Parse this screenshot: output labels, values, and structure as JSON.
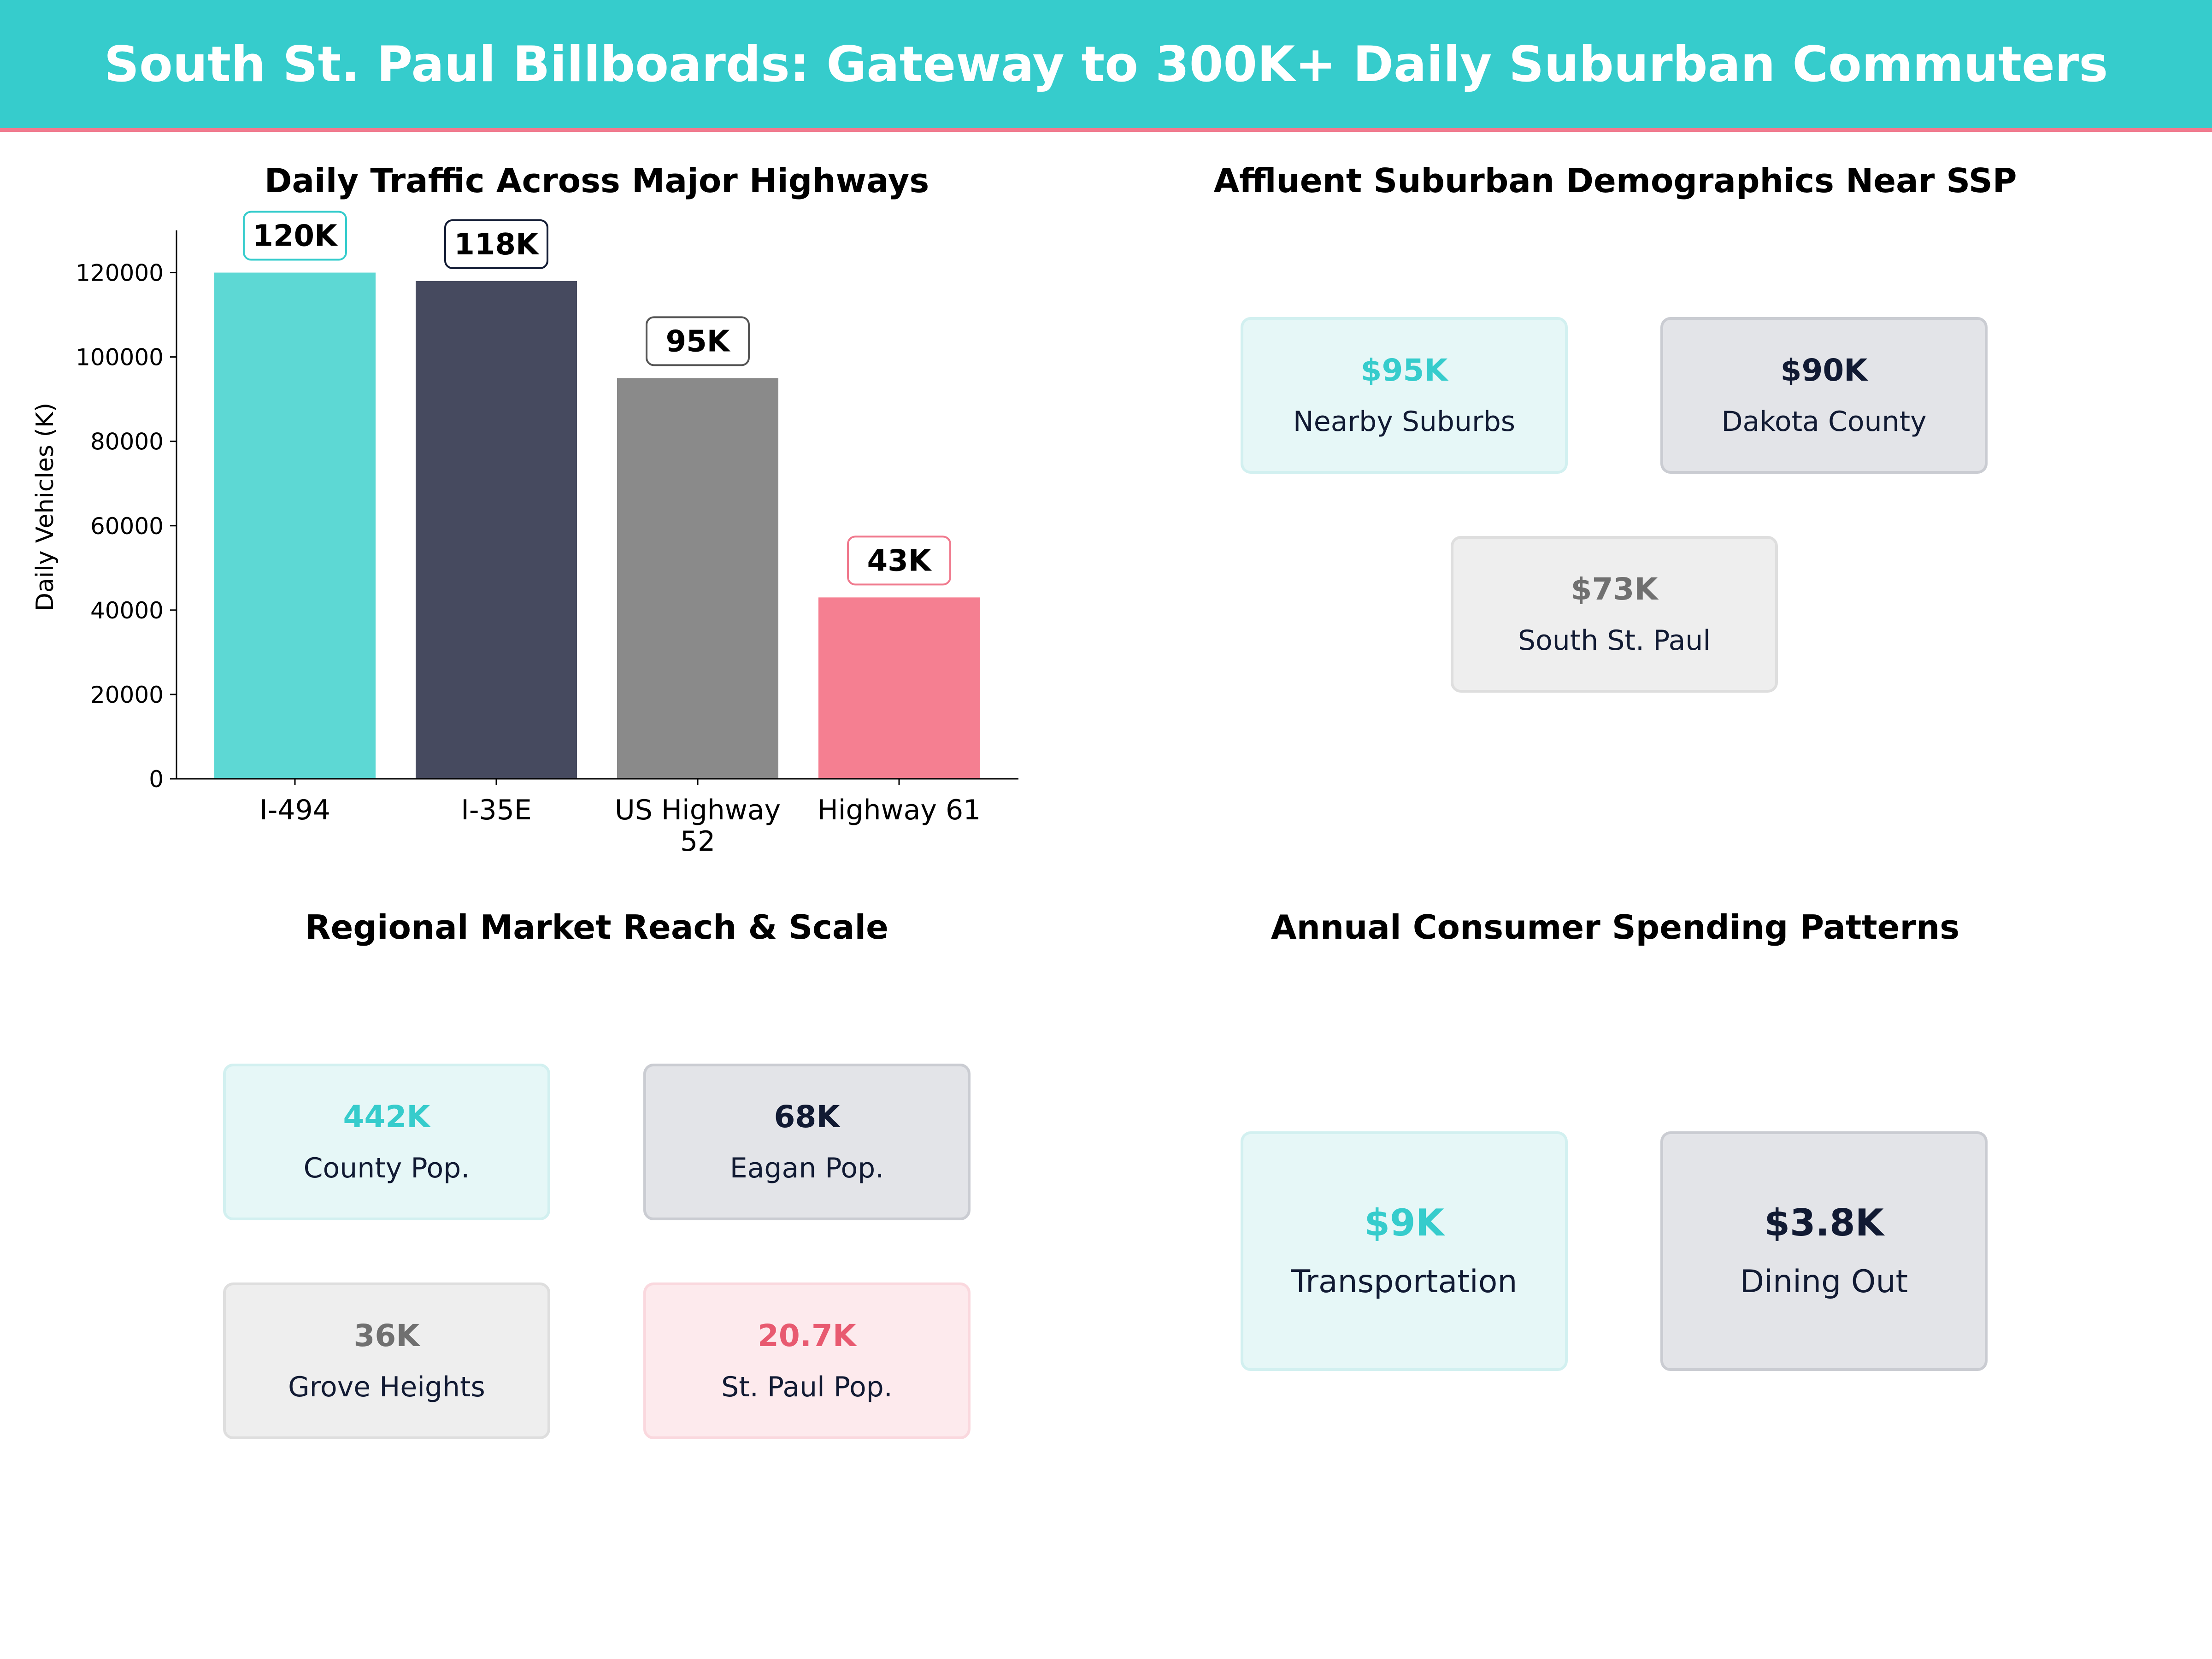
{
  "header": {
    "title": "South St. Paul Billboards: Gateway to 300K+ Daily Suburban Commuters"
  },
  "colors": {
    "teal": "#36CCCC",
    "navy": "#111a33",
    "gray": "#8A8A8A",
    "pink": "#F07A8E"
  },
  "chart_data": {
    "type": "bar",
    "title": "Daily Traffic Across Major Highways",
    "xlabel": "",
    "ylabel": "Daily Vehicles (K)",
    "categories": [
      "I-494",
      "I-35E",
      "US Highway 52",
      "Highway 61"
    ],
    "category_lines": [
      [
        "I-494"
      ],
      [
        "I-35E"
      ],
      [
        "US Highway",
        "52"
      ],
      [
        "Highway 61"
      ]
    ],
    "values": [
      120000,
      118000,
      95000,
      43000
    ],
    "data_labels": [
      "120K",
      "118K",
      "95K",
      "43K"
    ],
    "bar_colors": [
      "#5DD8D4",
      "#464A5F",
      "#8A8A8A",
      "#F57F91"
    ],
    "label_border_colors": [
      "#36CCCC",
      "#111a33",
      "#555555",
      "#F07A8E"
    ],
    "ylim": [
      0,
      130000
    ],
    "yticks": [
      0,
      20000,
      40000,
      60000,
      80000,
      100000,
      120000
    ],
    "grid": false
  },
  "demographics": {
    "title": "Affluent Suburban Demographics Near SSP",
    "cards": [
      {
        "value": "$95K",
        "label": "Nearby Suburbs"
      },
      {
        "value": "$90K",
        "label": "Dakota County"
      },
      {
        "value": "$73K",
        "label": "South St. Paul"
      }
    ]
  },
  "reach": {
    "title": "Regional Market Reach & Scale",
    "cards": [
      {
        "value": "442K",
        "label": "County Pop."
      },
      {
        "value": "68K",
        "label": "Eagan Pop."
      },
      {
        "value": "36K",
        "label": "Grove Heights"
      },
      {
        "value": "20.7K",
        "label": "St. Paul Pop."
      }
    ]
  },
  "spending": {
    "title": "Annual Consumer Spending Patterns",
    "cards": [
      {
        "value": "$9K",
        "label": "Transportation"
      },
      {
        "value": "$3.8K",
        "label": "Dining Out"
      }
    ]
  }
}
